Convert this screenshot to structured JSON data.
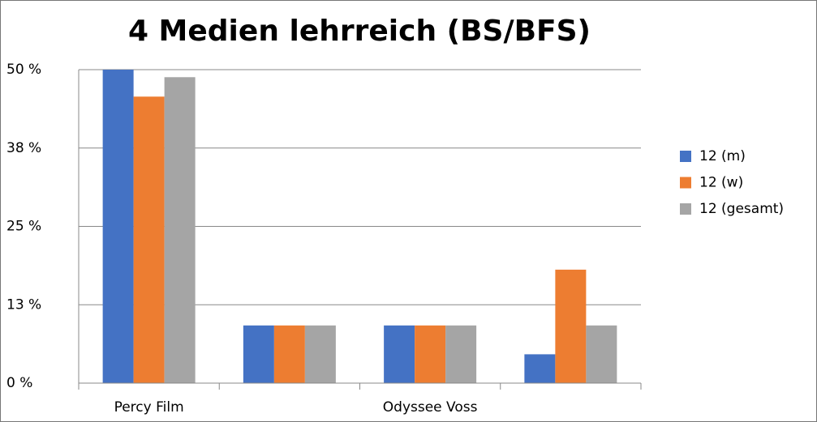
{
  "chart_data": {
    "type": "bar",
    "title": "4 Medien lehrreich (BS/BFS)",
    "categories": [
      "Percy Film",
      null,
      "Odyssee Voss",
      null
    ],
    "series": [
      {
        "name": "12 (m)",
        "color": "#4472c4",
        "values": [
          50,
          9.2,
          9.2,
          4.6
        ]
      },
      {
        "name": "12 (w)",
        "color": "#ed7d31",
        "values": [
          45.7,
          9.2,
          9.2,
          18.1
        ]
      },
      {
        "name": "12 (gesamt)",
        "color": "#a5a5a5",
        "values": [
          48.8,
          9.2,
          9.2,
          9.2
        ]
      }
    ],
    "ylim": [
      0,
      50
    ],
    "yticks": [
      {
        "value": 0,
        "label": "0 %"
      },
      {
        "value": 12.5,
        "label": "13 %"
      },
      {
        "value": 25,
        "label": "25 %"
      },
      {
        "value": 37.5,
        "label": "38 %"
      },
      {
        "value": 50,
        "label": "50 %"
      }
    ],
    "grid": true,
    "legend": "right"
  }
}
